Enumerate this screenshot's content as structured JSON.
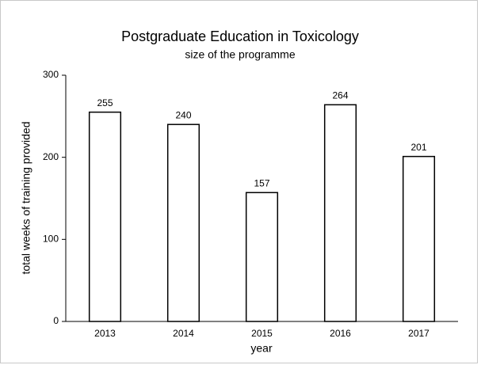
{
  "chart_data": {
    "type": "bar",
    "title": "Postgraduate Education in Toxicology",
    "subtitle": "size of the programme",
    "x_label": "year",
    "y_label": "total weeks of training provided",
    "categories": [
      "2013",
      "2014",
      "2015",
      "2016",
      "2017"
    ],
    "values": [
      255,
      240,
      157,
      264,
      201
    ],
    "color": "#ffffff",
    "edge_color": "#000000",
    "ylim": [
      0,
      300
    ],
    "yticks": [
      0,
      100,
      200,
      300
    ],
    "grid": false
  }
}
